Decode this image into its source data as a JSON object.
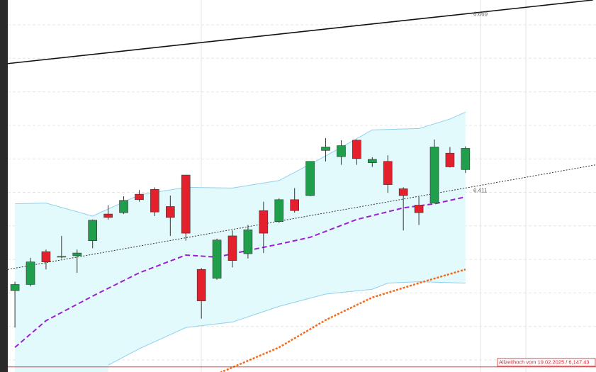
{
  "chart_data": {
    "type": "candlestick",
    "ylim": [
      6140,
      6684
    ],
    "xlim": [
      -0.46,
      37.4
    ],
    "up_color": "#1f9e4b",
    "down_color": "#e3202b",
    "candles": [
      {
        "open": 6259,
        "high": 6272,
        "low": 6205,
        "close": 6268
      },
      {
        "open": 6268,
        "high": 6307,
        "low": 6265,
        "close": 6301
      },
      {
        "open": 6316,
        "high": 6319,
        "low": 6290,
        "close": 6301
      },
      {
        "open": 6308,
        "high": 6339,
        "low": 6306,
        "close": 6309
      },
      {
        "open": 6310,
        "high": 6319,
        "low": 6285,
        "close": 6314
      },
      {
        "open": 6332,
        "high": 6363,
        "low": 6321,
        "close": 6362
      },
      {
        "open": 6371,
        "high": 6384,
        "low": 6363,
        "close": 6366
      },
      {
        "open": 6373,
        "high": 6397,
        "low": 6371,
        "close": 6391
      },
      {
        "open": 6400,
        "high": 6406,
        "low": 6389,
        "close": 6392
      },
      {
        "open": 6407,
        "high": 6410,
        "low": 6368,
        "close": 6374
      },
      {
        "open": 6382,
        "high": 6398,
        "low": 6339,
        "close": 6366
      },
      {
        "open": 6428,
        "high": 6428,
        "low": 6332,
        "close": 6343
      },
      {
        "open": 6290,
        "high": 6292,
        "low": 6218,
        "close": 6244
      },
      {
        "open": 6277,
        "high": 6335,
        "low": 6275,
        "close": 6333
      },
      {
        "open": 6339,
        "high": 6347,
        "low": 6293,
        "close": 6303
      },
      {
        "open": 6313,
        "high": 6355,
        "low": 6306,
        "close": 6348
      },
      {
        "open": 6376,
        "high": 6389,
        "low": 6314,
        "close": 6343
      },
      {
        "open": 6360,
        "high": 6394,
        "low": 6358,
        "close": 6392
      },
      {
        "open": 6392,
        "high": 6409,
        "low": 6373,
        "close": 6376
      },
      {
        "open": 6398,
        "high": 6448,
        "low": 6397,
        "close": 6448
      },
      {
        "open": 6464,
        "high": 6482,
        "low": 6448,
        "close": 6469
      },
      {
        "open": 6455,
        "high": 6479,
        "low": 6443,
        "close": 6471
      },
      {
        "open": 6479,
        "high": 6480,
        "low": 6443,
        "close": 6452
      },
      {
        "open": 6446,
        "high": 6454,
        "low": 6440,
        "close": 6451
      },
      {
        "open": 6448,
        "high": 6457,
        "low": 6402,
        "close": 6414
      },
      {
        "open": 6408,
        "high": 6410,
        "low": 6347,
        "close": 6398
      },
      {
        "open": 6384,
        "high": 6396,
        "low": 6355,
        "close": 6373
      },
      {
        "open": 6387,
        "high": 6480,
        "low": 6386,
        "close": 6469
      },
      {
        "open": 6460,
        "high": 6469,
        "low": 6439,
        "close": 6440
      },
      {
        "open": 6436,
        "high": 6470,
        "low": 6431,
        "close": 6467
      }
    ],
    "band": {
      "color": "#e3fafc",
      "line_color": "#8fd0ee",
      "upper": {
        "x": [
          0,
          2,
          5,
          8,
          11,
          14,
          17,
          20,
          23,
          26,
          28,
          29
        ],
        "values": [
          6386,
          6387,
          6368,
          6399,
          6410,
          6409,
          6420,
          6456,
          6494,
          6496,
          6510,
          6520
        ]
      },
      "lower": {
        "x": [
          6,
          8,
          11,
          14,
          17,
          20,
          23,
          24,
          26,
          29
        ],
        "values": [
          6150,
          6174,
          6205,
          6213,
          6236,
          6254,
          6261,
          6270,
          6272,
          6270
        ]
      }
    },
    "overlays": [
      {
        "color": "#9b1fd6",
        "dash": "dashed",
        "x": [
          0,
          2,
          5,
          8,
          11,
          13,
          14,
          17,
          19,
          22,
          25,
          27,
          29
        ],
        "values": [
          6176,
          6215,
          6251,
          6285,
          6311,
          6308,
          6313,
          6327,
          6337,
          6363,
          6380,
          6386,
          6396
        ]
      },
      {
        "color": "#f26a1b",
        "dash": "dotted",
        "x": [
          13,
          17,
          20,
          23,
          26,
          29
        ],
        "values": [
          6137,
          6176,
          6216,
          6249,
          6270,
          6290
        ]
      },
      {
        "color": "#111111",
        "dash": "solid",
        "x": [
          -0.46,
          37.2
        ],
        "values": [
          6591,
          6684
        ]
      },
      {
        "color": "#333333",
        "dash": "fine",
        "x": [
          -0.46,
          37.4
        ],
        "values": [
          6290,
          6443
        ]
      }
    ],
    "annotations": [
      {
        "value": 6669,
        "label": "6.669"
      },
      {
        "value": 6411,
        "label": "6.411"
      }
    ],
    "reference_line": {
      "value": 6147.43,
      "label": "Allzeithoch vom 19.02.2025 /  6,147.43",
      "color": "#e3202b"
    }
  }
}
